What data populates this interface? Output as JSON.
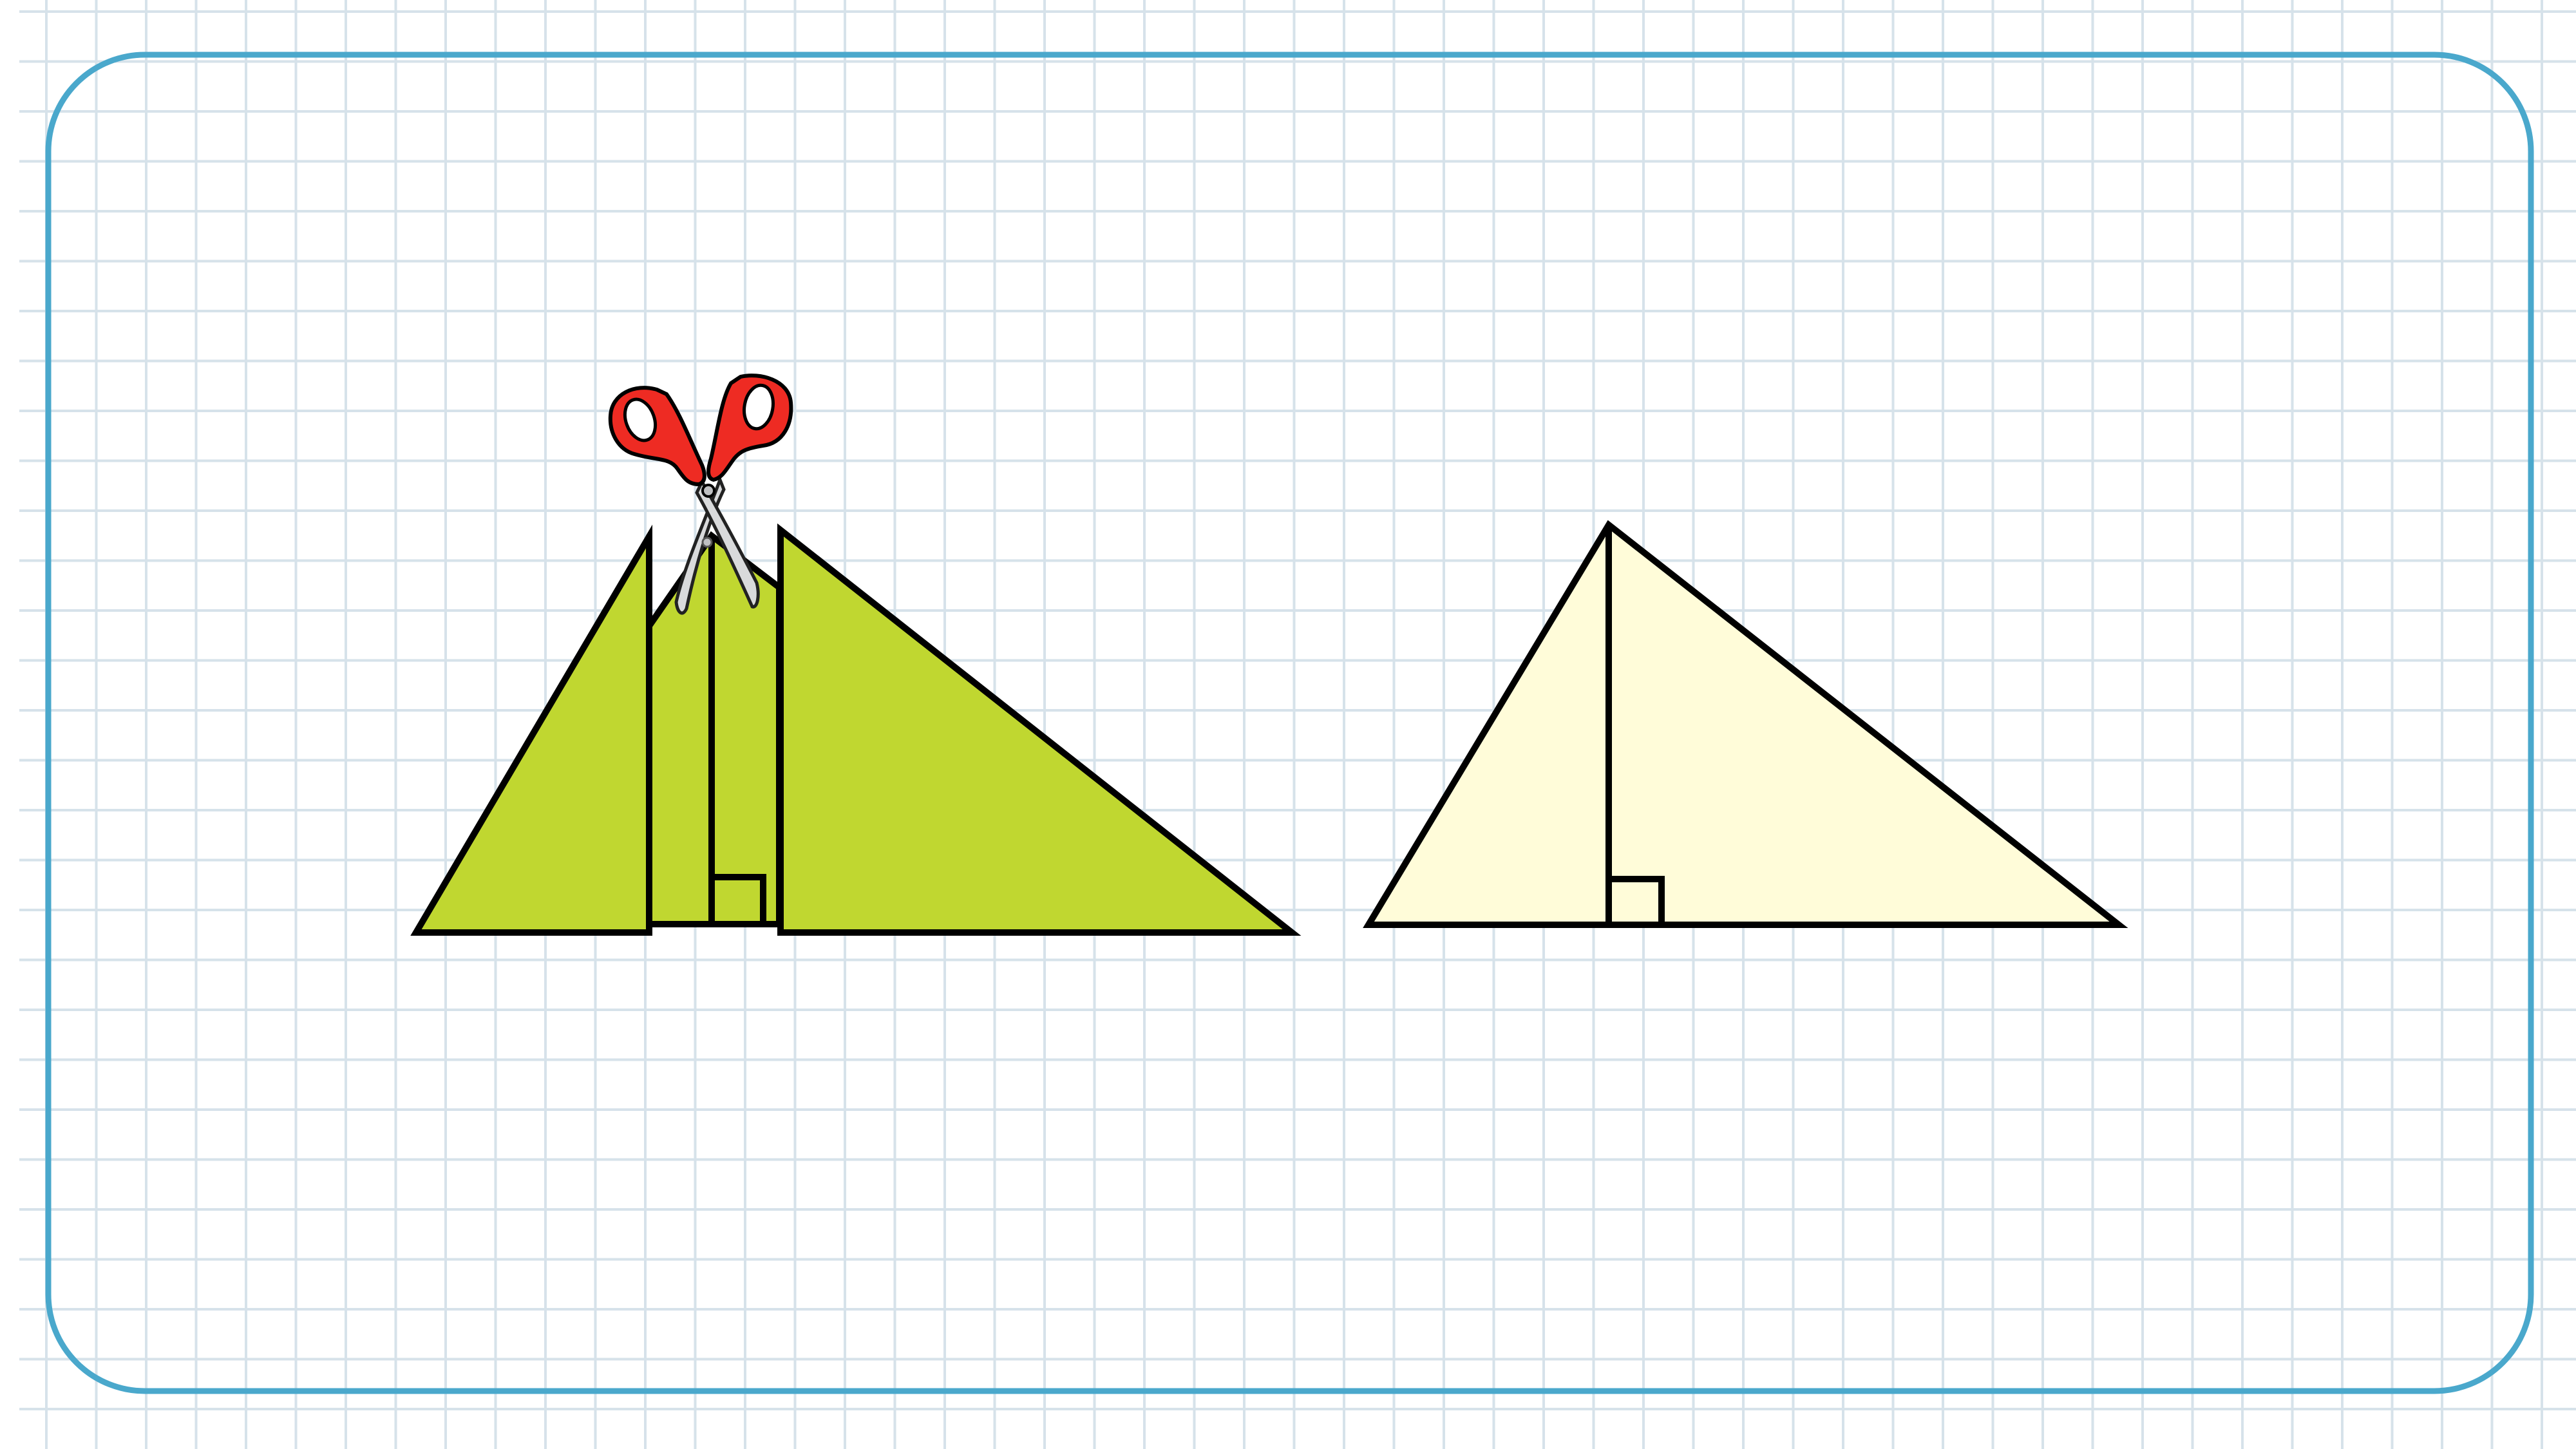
{
  "colors": {
    "background": "#ffffff",
    "grid_line": "#d6e2ea",
    "frame": "#4aa8cc",
    "cut_triangle_fill": "#c0d730",
    "whole_triangle_fill": "#fffcd9",
    "outline": "#000000",
    "scissors_handle": "#ee2b23",
    "scissors_blade": "#d9dadb"
  },
  "icons": {
    "scissors": "scissors-icon",
    "right_angle": "right-angle-marker"
  },
  "figures": {
    "left": {
      "description_name": "cut-triangle",
      "pieces": 3
    },
    "right": {
      "description_name": "whole-triangle",
      "pieces": 1
    }
  }
}
